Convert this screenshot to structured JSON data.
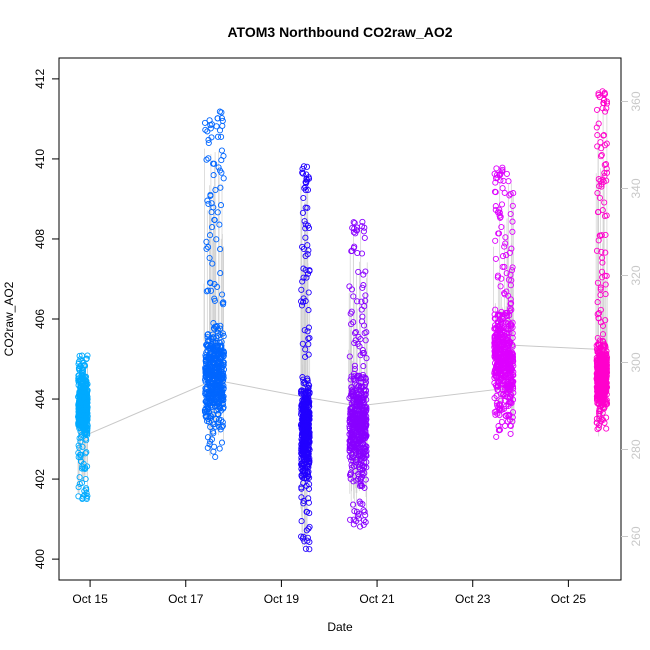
{
  "chart_data": {
    "type": "scatter",
    "title": "ATOM3 Northbound CO2raw_AO2",
    "xlabel": "Date",
    "ylabel": "CO2raw_AO2",
    "x_ticks": [
      "Oct 15",
      "Oct 17",
      "Oct 19",
      "Oct 21",
      "Oct 23",
      "Oct 25"
    ],
    "x_tick_days": [
      15,
      17,
      19,
      21,
      23,
      25
    ],
    "xlim_days": [
      14.35,
      26.1
    ],
    "ylim": [
      400,
      412
    ],
    "y_ticks": [
      400,
      402,
      404,
      406,
      408,
      410,
      412
    ],
    "y2lim": [
      250,
      370
    ],
    "y2_ticks": [
      260,
      280,
      300,
      320,
      340,
      360
    ],
    "y2_color": "#c8c8c8",
    "grid": false,
    "legend": "none",
    "series": [
      {
        "day": 14.85,
        "color": "#00aaff",
        "low": 401.5,
        "high": 405.1,
        "q1": 403.0,
        "q3": 404.5,
        "width": 0.2
      },
      {
        "day": 17.6,
        "color": "#0066ff",
        "low": 402.5,
        "high": 411.2,
        "q1": 403.3,
        "q3": 405.8,
        "width": 0.4
      },
      {
        "day": 19.5,
        "color": "#2200ff",
        "low": 400.2,
        "high": 409.9,
        "q1": 402.0,
        "q3": 404.5,
        "width": 0.18
      },
      {
        "day": 20.6,
        "color": "#8800ff",
        "low": 400.8,
        "high": 408.5,
        "q1": 401.9,
        "q3": 404.8,
        "width": 0.36
      },
      {
        "day": 23.65,
        "color": "#dd00ff",
        "low": 403.0,
        "high": 409.8,
        "q1": 403.6,
        "q3": 406.4,
        "width": 0.4
      },
      {
        "day": 25.7,
        "color": "#ff00cc",
        "low": 403.2,
        "high": 411.7,
        "q1": 403.6,
        "q3": 405.5,
        "width": 0.22
      }
    ],
    "secondary_line": {
      "color": "#c8c8c8",
      "points": [
        [
          14.85,
          283
        ],
        [
          17.6,
          296
        ],
        [
          19.5,
          292
        ],
        [
          20.6,
          290
        ],
        [
          23.65,
          294
        ],
        [
          23.8,
          304
        ],
        [
          25.7,
          303
        ]
      ]
    }
  }
}
